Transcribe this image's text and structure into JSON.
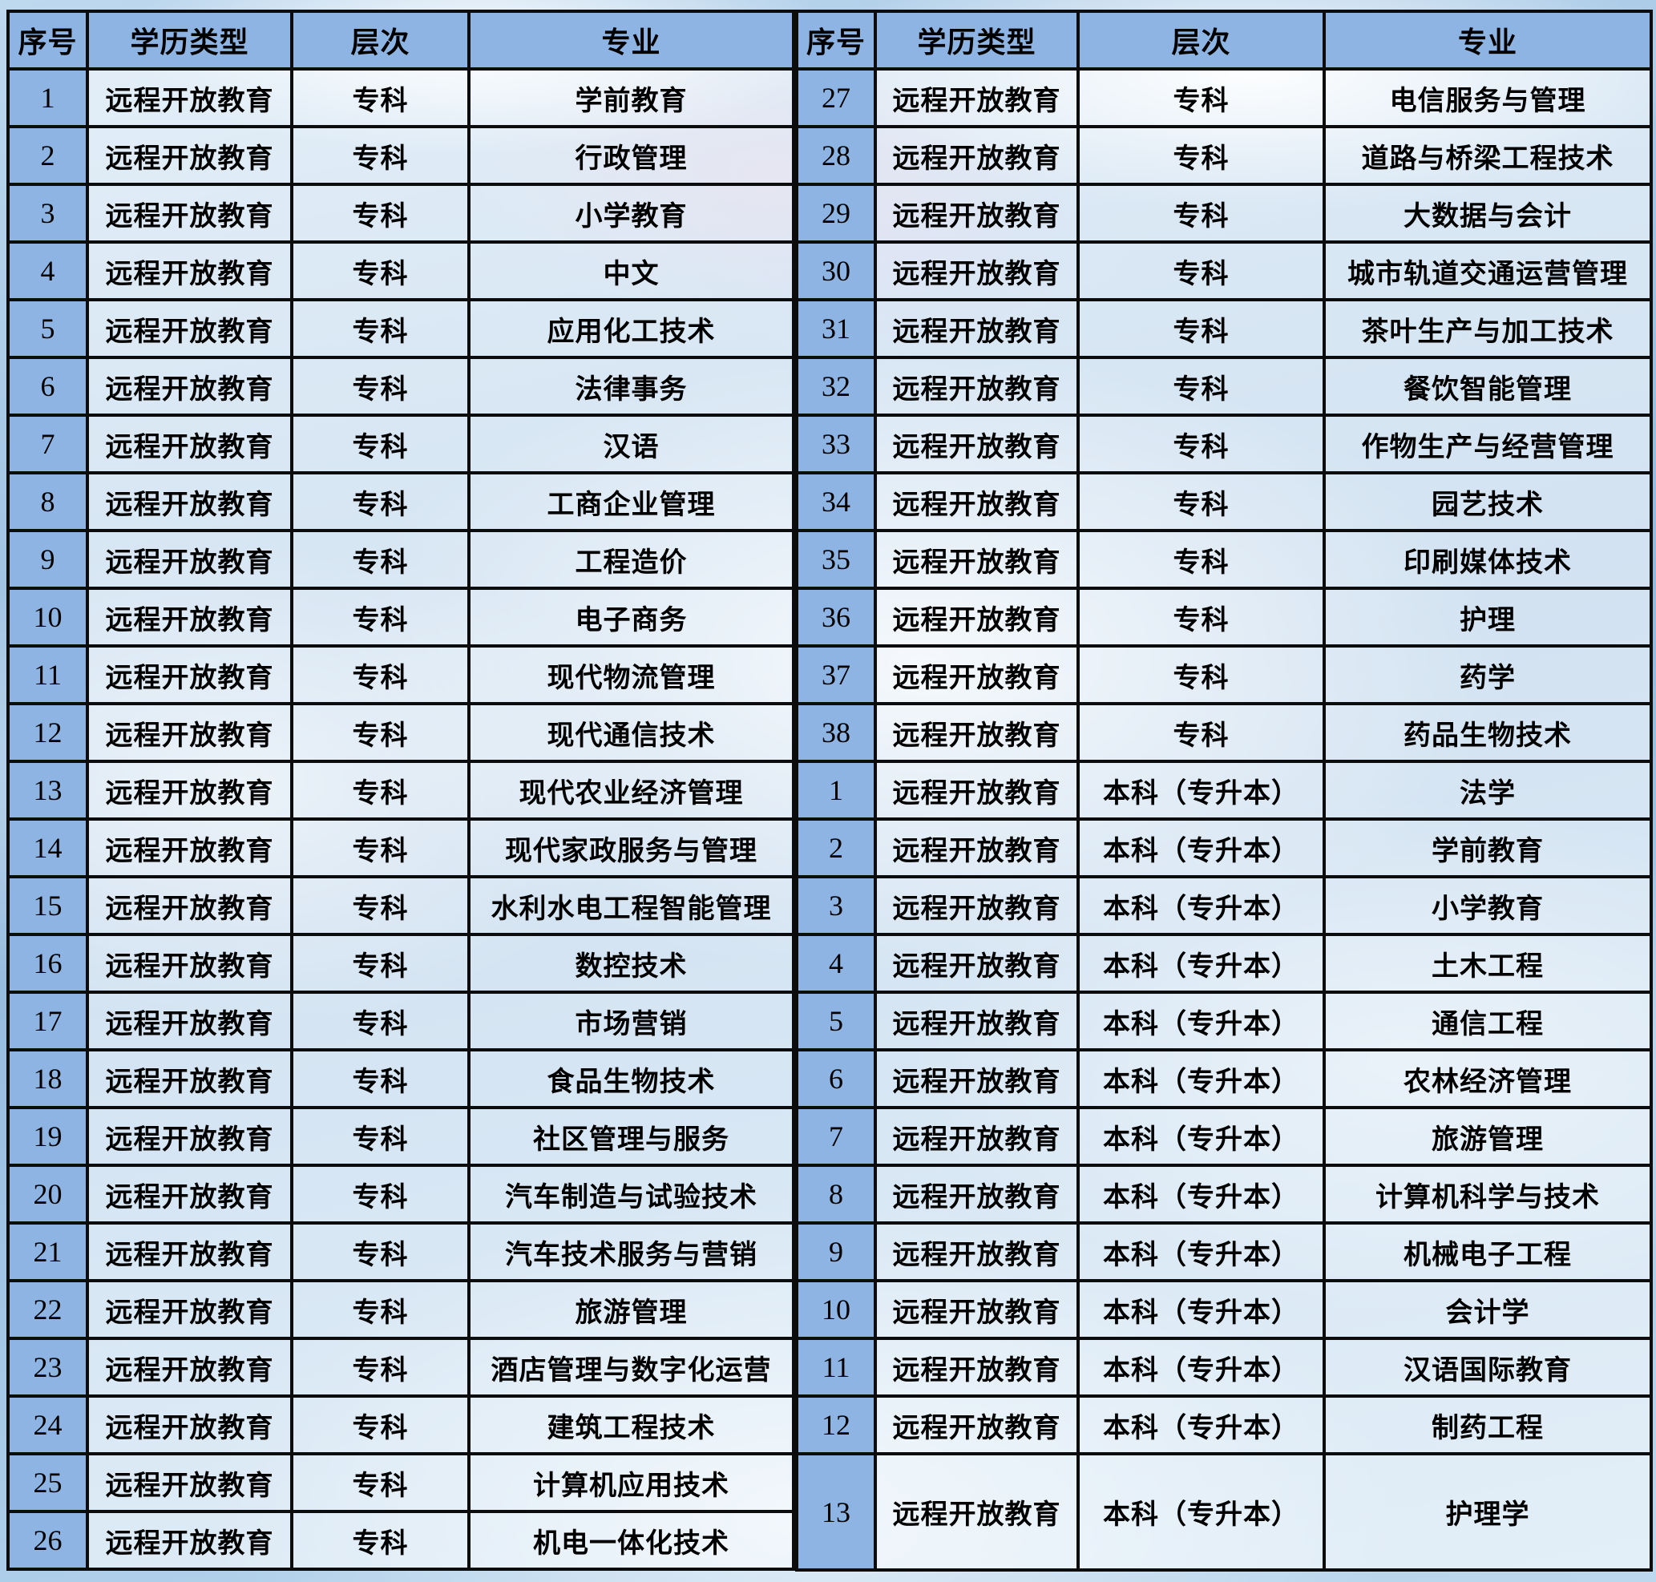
{
  "colors": {
    "header_blue": "#8DB4E2",
    "grid_border": "#0c0c0c",
    "cell_overlay_white": "rgba(255,255,255,0.58)",
    "sky_blue": "#94bade"
  },
  "header": [
    "序号",
    "学历类型",
    "层次",
    "专业"
  ],
  "tables": {
    "left": {
      "rows": [
        [
          "1",
          "远程开放教育",
          "专科",
          "学前教育"
        ],
        [
          "2",
          "远程开放教育",
          "专科",
          "行政管理"
        ],
        [
          "3",
          "远程开放教育",
          "专科",
          "小学教育"
        ],
        [
          "4",
          "远程开放教育",
          "专科",
          "中文"
        ],
        [
          "5",
          "远程开放教育",
          "专科",
          "应用化工技术"
        ],
        [
          "6",
          "远程开放教育",
          "专科",
          "法律事务"
        ],
        [
          "7",
          "远程开放教育",
          "专科",
          "汉语"
        ],
        [
          "8",
          "远程开放教育",
          "专科",
          "工商企业管理"
        ],
        [
          "9",
          "远程开放教育",
          "专科",
          "工程造价"
        ],
        [
          "10",
          "远程开放教育",
          "专科",
          "电子商务"
        ],
        [
          "11",
          "远程开放教育",
          "专科",
          "现代物流管理"
        ],
        [
          "12",
          "远程开放教育",
          "专科",
          "现代通信技术"
        ],
        [
          "13",
          "远程开放教育",
          "专科",
          "现代农业经济管理"
        ],
        [
          "14",
          "远程开放教育",
          "专科",
          "现代家政服务与管理"
        ],
        [
          "15",
          "远程开放教育",
          "专科",
          "水利水电工程智能管理"
        ],
        [
          "16",
          "远程开放教育",
          "专科",
          "数控技术"
        ],
        [
          "17",
          "远程开放教育",
          "专科",
          "市场营销"
        ],
        [
          "18",
          "远程开放教育",
          "专科",
          "食品生物技术"
        ],
        [
          "19",
          "远程开放教育",
          "专科",
          "社区管理与服务"
        ],
        [
          "20",
          "远程开放教育",
          "专科",
          "汽车制造与试验技术"
        ],
        [
          "21",
          "远程开放教育",
          "专科",
          "汽车技术服务与营销"
        ],
        [
          "22",
          "远程开放教育",
          "专科",
          "旅游管理"
        ],
        [
          "23",
          "远程开放教育",
          "专科",
          "酒店管理与数字化运营"
        ],
        [
          "24",
          "远程开放教育",
          "专科",
          "建筑工程技术"
        ],
        [
          "25",
          "远程开放教育",
          "专科",
          "计算机应用技术"
        ],
        [
          "26",
          "远程开放教育",
          "专科",
          "机电一体化技术"
        ]
      ]
    },
    "right": {
      "rows": [
        [
          "27",
          "远程开放教育",
          "专科",
          "电信服务与管理"
        ],
        [
          "28",
          "远程开放教育",
          "专科",
          "道路与桥梁工程技术"
        ],
        [
          "29",
          "远程开放教育",
          "专科",
          "大数据与会计"
        ],
        [
          "30",
          "远程开放教育",
          "专科",
          "城市轨道交通运营管理"
        ],
        [
          "31",
          "远程开放教育",
          "专科",
          "茶叶生产与加工技术"
        ],
        [
          "32",
          "远程开放教育",
          "专科",
          "餐饮智能管理"
        ],
        [
          "33",
          "远程开放教育",
          "专科",
          "作物生产与经营管理"
        ],
        [
          "34",
          "远程开放教育",
          "专科",
          "园艺技术"
        ],
        [
          "35",
          "远程开放教育",
          "专科",
          "印刷媒体技术"
        ],
        [
          "36",
          "远程开放教育",
          "专科",
          "护理"
        ],
        [
          "37",
          "远程开放教育",
          "专科",
          "药学"
        ],
        [
          "38",
          "远程开放教育",
          "专科",
          "药品生物技术"
        ],
        [
          "1",
          "远程开放教育",
          "本科（专升本）",
          "法学"
        ],
        [
          "2",
          "远程开放教育",
          "本科（专升本）",
          "学前教育"
        ],
        [
          "3",
          "远程开放教育",
          "本科（专升本）",
          "小学教育"
        ],
        [
          "4",
          "远程开放教育",
          "本科（专升本）",
          "土木工程"
        ],
        [
          "5",
          "远程开放教育",
          "本科（专升本）",
          "通信工程"
        ],
        [
          "6",
          "远程开放教育",
          "本科（专升本）",
          "农林经济管理"
        ],
        [
          "7",
          "远程开放教育",
          "本科（专升本）",
          "旅游管理"
        ],
        [
          "8",
          "远程开放教育",
          "本科（专升本）",
          "计算机科学与技术"
        ],
        [
          "9",
          "远程开放教育",
          "本科（专升本）",
          "机械电子工程"
        ],
        [
          "10",
          "远程开放教育",
          "本科（专升本）",
          "会计学"
        ],
        [
          "11",
          "远程开放教育",
          "本科（专升本）",
          "汉语国际教育"
        ],
        [
          "12",
          "远程开放教育",
          "本科（专升本）",
          "制药工程"
        ],
        [
          "13",
          "远程开放教育",
          "本科（专升本）",
          "护理学"
        ]
      ],
      "last_row_double_height": true
    }
  }
}
